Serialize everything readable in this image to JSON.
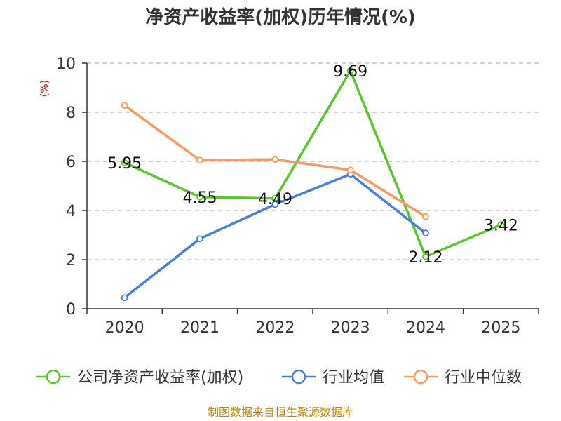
{
  "chart_data": {
    "type": "line",
    "title": "净资产收益率(加权)历年情况(%)",
    "ylabel": "(%)",
    "xlabel": "",
    "categories": [
      "2020",
      "2021",
      "2022",
      "2023",
      "2024",
      "2025"
    ],
    "ylim": [
      0,
      10
    ],
    "yticks": [
      0,
      2,
      4,
      6,
      8,
      10
    ],
    "grid": true,
    "legend_position": "bottom",
    "series": [
      {
        "name": "公司净资产收益率(加权)",
        "color": "#5cc42f",
        "values": [
          5.95,
          4.55,
          4.49,
          9.69,
          2.12,
          3.42
        ],
        "labels": [
          "5.95",
          "4.55",
          "4.49",
          "9.69",
          "2.12",
          "3.42"
        ]
      },
      {
        "name": "行业均值",
        "color": "#4a7fd8",
        "values": [
          0.45,
          2.85,
          4.25,
          5.48,
          3.08,
          null
        ],
        "labels": []
      },
      {
        "name": "行业中位数",
        "color": "#f79a62",
        "values": [
          8.28,
          6.05,
          6.08,
          5.65,
          3.75,
          null
        ],
        "labels": []
      }
    ]
  },
  "source": "制图数据来自恒生聚源数据库"
}
